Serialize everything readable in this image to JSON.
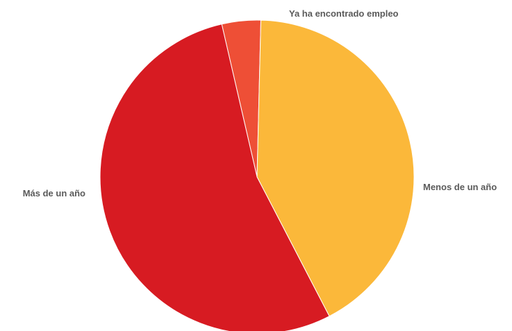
{
  "chart_data": {
    "type": "pie",
    "title": "",
    "slices": [
      {
        "label": "Ya ha encontrado empleo",
        "value": 4,
        "color": "#EE4F36"
      },
      {
        "label": "Menos de un año",
        "value": 42,
        "color": "#FBB83A"
      },
      {
        "label": "Más de un año",
        "value": 54,
        "color": "#D71B22"
      }
    ]
  }
}
